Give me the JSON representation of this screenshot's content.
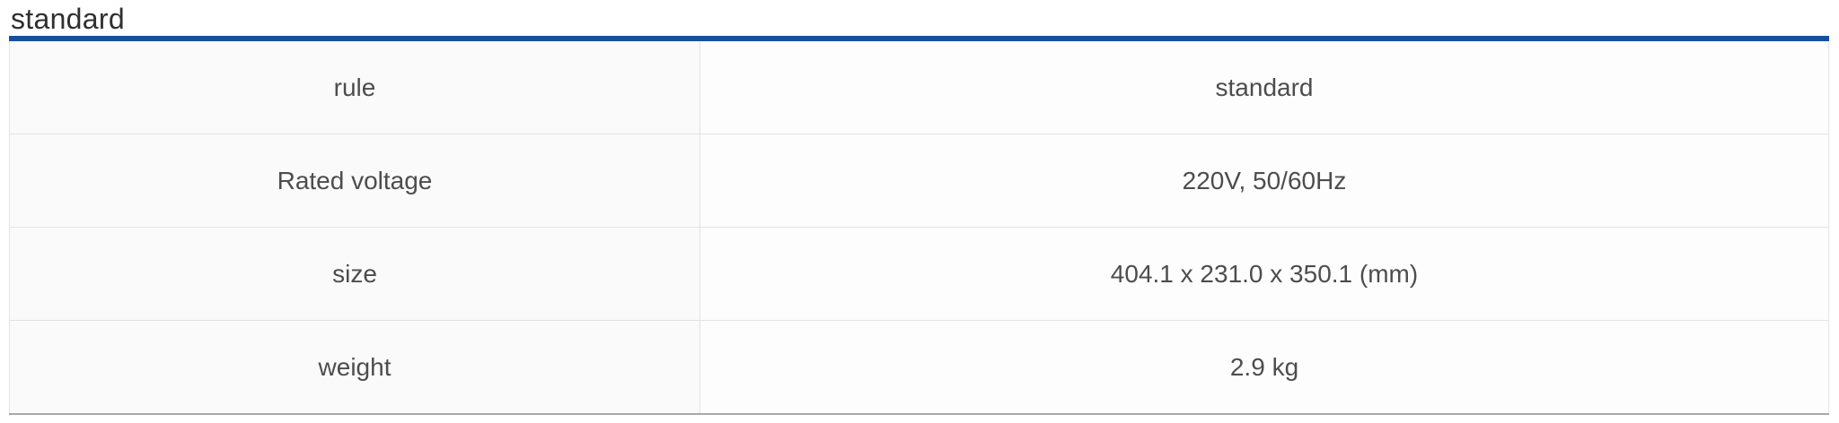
{
  "section": {
    "title": "standard"
  },
  "table": {
    "rows": [
      {
        "label": "rule",
        "value": "standard"
      },
      {
        "label": "Rated voltage",
        "value": "220V, 50/60Hz"
      },
      {
        "label": "size",
        "value": "404.1 x 231.0 x 350.1 (mm)"
      },
      {
        "label": "weight",
        "value": "2.9 kg"
      }
    ]
  },
  "colors": {
    "accent_blue": "#17509e",
    "grid_line": "#e3e3e3",
    "outer_border": "#d6d6d6",
    "bottom_border": "#a8a8a8",
    "label_cell_bg": "#fafafa",
    "value_cell_bg": "#fdfdfd",
    "title_text": "#2f2f2f",
    "cell_text": "#4d4d4d"
  }
}
